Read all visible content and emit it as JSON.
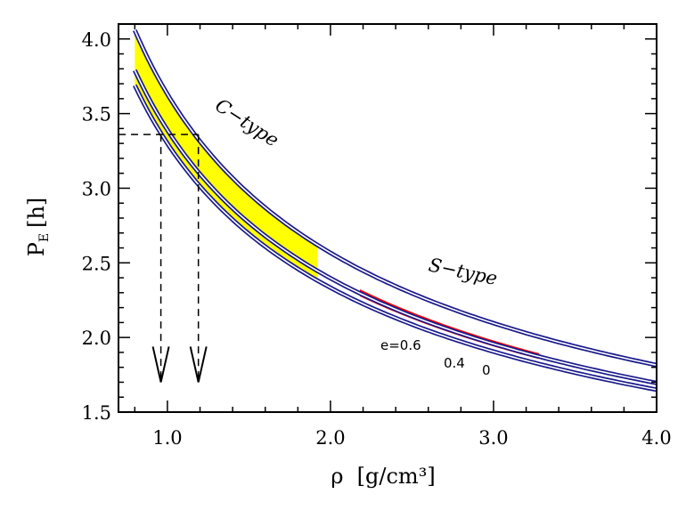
{
  "chart_data": {
    "type": "line",
    "title": "",
    "xlabel": "ρ  [g/cm³]",
    "ylabel_main": "P",
    "ylabel_sub": "E",
    "ylabel_unit": "[h]",
    "xlim": [
      0.7,
      4.0
    ],
    "ylim": [
      1.5,
      4.1
    ],
    "x_ticks": [
      {
        "value": 1.0,
        "label": "1.0"
      },
      {
        "value": 2.0,
        "label": "2.0"
      },
      {
        "value": 3.0,
        "label": "3.0"
      },
      {
        "value": 4.0,
        "label": "4.0"
      }
    ],
    "y_ticks": [
      {
        "value": 1.5,
        "label": "1.5"
      },
      {
        "value": 2.0,
        "label": "2.0"
      },
      {
        "value": 2.5,
        "label": "2.5"
      },
      {
        "value": 3.0,
        "label": "3.0"
      },
      {
        "value": 3.5,
        "label": "3.5"
      },
      {
        "value": 4.0,
        "label": "4.0"
      }
    ],
    "grid": false,
    "curve_color": "#1a1a8c",
    "series": [
      {
        "label": "e=0.6",
        "coef": 3.63
      },
      {
        "label": "0.4",
        "coef": 3.39
      },
      {
        "label": "0",
        "coef": 3.3
      }
    ],
    "bands": [
      {
        "name": "C-type",
        "color": "#ffff00",
        "x_range": [
          0.8,
          1.92
        ],
        "lower_coef": 3.3,
        "upper_coef": 3.63
      },
      {
        "name": "S-type",
        "color": "#ff0000",
        "x_range": [
          2.18,
          3.28
        ],
        "lower_coef": 3.36,
        "upper_coef": 3.43
      }
    ],
    "guides": {
      "dash_level_y": 3.36,
      "arrows_x": [
        0.96,
        1.19
      ],
      "arrow_tip_y": 1.7
    },
    "annotations": {
      "c_type": "C−type",
      "s_type": "S−type",
      "e06": "e=0.6",
      "e04": "0.4",
      "e0": "0"
    }
  }
}
